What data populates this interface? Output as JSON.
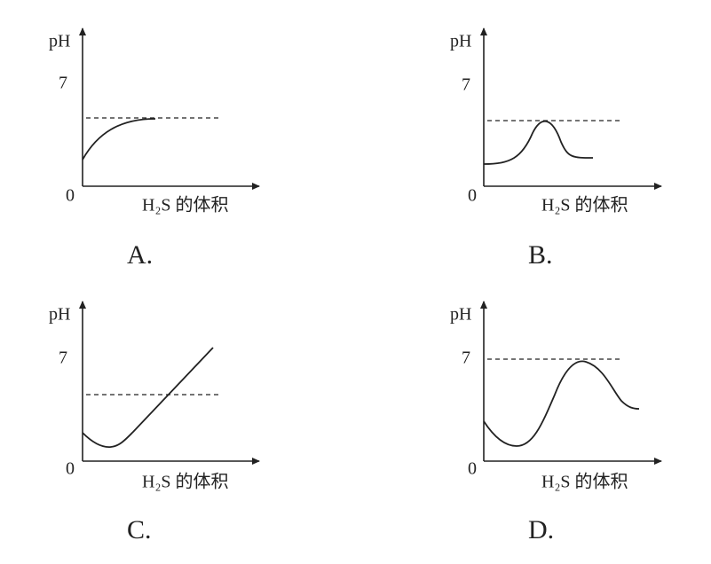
{
  "panels": [
    {
      "y_label": "pH",
      "y_tick": "7",
      "origin": "0",
      "x_label": "H₂S 的体积",
      "caption": "A."
    },
    {
      "y_label": "pH",
      "y_tick": "7",
      "origin": "0",
      "x_label": "H₂S 的体积",
      "caption": "B."
    },
    {
      "y_label": "pH",
      "y_tick": "7",
      "origin": "0",
      "x_label": "H₂S 的体积",
      "caption": "C."
    },
    {
      "y_label": "pH",
      "y_tick": "7",
      "origin": "0",
      "x_label": "H₂S 的体积",
      "caption": "D."
    }
  ]
}
